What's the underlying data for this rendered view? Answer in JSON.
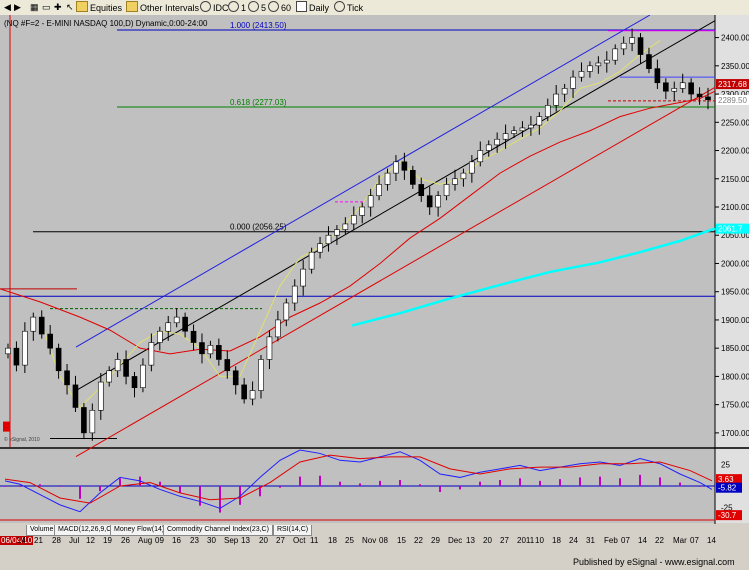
{
  "toolbar": {
    "items": [
      "Equities",
      "Other Intervals",
      "IDC",
      "1",
      "5",
      "60",
      "Daily",
      "Tick"
    ]
  },
  "chart_title": "(NQ #F=2 - E-MINI NASDAQ 100,D) Dynamic,0:00-24:00",
  "watermark": "© eSignal, 2010",
  "footer": "Published by eSignal - www.esignal.com",
  "tabs": [
    "Volume",
    "MACD(12,26,9,C)",
    "Money Flow(14)",
    "Commodity Channel Index(23,C)",
    "RSI(14,C)"
  ],
  "colors": {
    "chart_bg": "#c0c0c0",
    "up": "#ffffff",
    "down": "#000000",
    "fib_top": "#0000c0",
    "fib_mid": "#008000",
    "fib_low": "#000000",
    "cyan_ma": "#00ffff",
    "red_ma": "#e00000",
    "price_box": "#c00000"
  },
  "chart_data": {
    "type": "candlestick",
    "title": "(NQ #F=2 - E-MINI NASDAQ 100,D) Dynamic,0:00-24:00",
    "xlabel": "",
    "ylabel": "",
    "ylim": [
      1675,
      2440
    ],
    "y_ticks": [
      1700,
      1750,
      1800,
      1850,
      1900,
      1950,
      2000,
      2050,
      2100,
      2150,
      2200,
      2250,
      2300,
      2350,
      2400
    ],
    "date_labels": [
      "06/04/10",
      "14",
      "21",
      "28",
      "Jul",
      "12",
      "19",
      "26",
      "Aug",
      "09",
      "16",
      "23",
      "30",
      "Sep",
      "13",
      "20",
      "27",
      "Oct",
      "11",
      "18",
      "25",
      "Nov",
      "08",
      "15",
      "22",
      "29",
      "Dec",
      "13",
      "20",
      "27",
      "2011",
      "10",
      "18",
      "24",
      "31",
      "Feb",
      "07",
      "14",
      "22",
      "Mar",
      "07",
      "14"
    ],
    "fib_levels": [
      {
        "label": "1.000 (2413.50)",
        "value": 2413.5
      },
      {
        "label": "0.618 (2277.03)",
        "value": 2277.03
      },
      {
        "label": "0.000 (2056.25)",
        "value": 2056.25
      }
    ],
    "price_labels": [
      {
        "text": "2317.68",
        "value": 2317.68,
        "bg": "#c00000",
        "fg": "#ffffff"
      },
      {
        "text": "2289.50",
        "value": 2289.5,
        "bg": "#ffffff",
        "fg": "#808080"
      },
      {
        "text": "2061.7",
        "value": 2061.7,
        "bg": "#00ffff",
        "fg": "#ffffff"
      }
    ],
    "hlines": [
      {
        "value": 1942,
        "color": "#0000c0",
        "dash": false
      },
      {
        "value": 1955,
        "color": "#c00000",
        "dash": false,
        "xfrom": 0,
        "xto": 77
      },
      {
        "value": 1920,
        "color": "#006000",
        "dash": true,
        "xfrom": 50,
        "xto": 262
      },
      {
        "value": 1690,
        "color": "#000000",
        "dash": false,
        "xfrom": 50,
        "xto": 117
      },
      {
        "value": 2109,
        "color": "#ff00ff",
        "dash": true,
        "xfrom": 335,
        "xto": 365
      },
      {
        "value": 2288,
        "color": "#c00000",
        "dash": true,
        "xfrom": 608,
        "xto": 715
      },
      {
        "value": 2330,
        "color": "#4040ff",
        "dash": false,
        "xfrom": 620,
        "xto": 715
      },
      {
        "value": 2412,
        "color": "#ff00ff",
        "dash": false,
        "xfrom": 608,
        "xto": 715
      }
    ],
    "channel": {
      "upper": [
        [
          76,
          1852
        ],
        [
          650,
          2440
        ]
      ],
      "middle": [
        [
          76,
          1775
        ],
        [
          715,
          2430
        ]
      ],
      "lower": [
        [
          76,
          1658
        ],
        [
          715,
          2312
        ]
      ]
    },
    "cyan_ma": [
      [
        352,
        1890
      ],
      [
        400,
        1912
      ],
      [
        450,
        1938
      ],
      [
        500,
        1962
      ],
      [
        550,
        1985
      ],
      [
        600,
        2002
      ],
      [
        640,
        2020
      ],
      [
        680,
        2040
      ],
      [
        715,
        2062
      ]
    ],
    "red_ma": [
      [
        0,
        1955
      ],
      [
        40,
        1932
      ],
      [
        80,
        1905
      ],
      [
        110,
        1882
      ],
      [
        140,
        1850
      ],
      [
        170,
        1840
      ],
      [
        200,
        1848
      ],
      [
        230,
        1845
      ],
      [
        260,
        1870
      ],
      [
        290,
        1905
      ],
      [
        320,
        1930
      ],
      [
        350,
        1960
      ],
      [
        380,
        2000
      ],
      [
        410,
        2045
      ],
      [
        440,
        2080
      ],
      [
        470,
        2120
      ],
      [
        500,
        2160
      ],
      [
        530,
        2190
      ],
      [
        560,
        2215
      ],
      [
        590,
        2235
      ],
      [
        620,
        2260
      ],
      [
        650,
        2275
      ],
      [
        680,
        2285
      ],
      [
        700,
        2292
      ],
      [
        715,
        2305
      ]
    ],
    "yellow_ma": [
      [
        40,
        1900
      ],
      [
        60,
        1800
      ],
      [
        80,
        1745
      ],
      [
        100,
        1780
      ],
      [
        120,
        1820
      ],
      [
        140,
        1860
      ],
      [
        160,
        1880
      ],
      [
        180,
        1875
      ],
      [
        200,
        1850
      ],
      [
        220,
        1800
      ],
      [
        240,
        1800
      ],
      [
        260,
        1880
      ],
      [
        280,
        1960
      ],
      [
        300,
        2010
      ],
      [
        320,
        2030
      ],
      [
        340,
        2060
      ],
      [
        360,
        2100
      ],
      [
        380,
        2150
      ],
      [
        400,
        2180
      ],
      [
        420,
        2150
      ],
      [
        440,
        2140
      ],
      [
        460,
        2150
      ],
      [
        480,
        2180
      ],
      [
        500,
        2200
      ],
      [
        520,
        2220
      ],
      [
        540,
        2240
      ],
      [
        560,
        2270
      ],
      [
        580,
        2310
      ],
      [
        600,
        2320
      ],
      [
        620,
        2340
      ],
      [
        640,
        2370
      ],
      [
        660,
        2395
      ]
    ],
    "closes": [
      1850,
      1820,
      1880,
      1905,
      1875,
      1850,
      1810,
      1785,
      1745,
      1700,
      1740,
      1790,
      1810,
      1830,
      1800,
      1780,
      1820,
      1860,
      1880,
      1895,
      1905,
      1880,
      1860,
      1840,
      1855,
      1830,
      1810,
      1785,
      1760,
      1775,
      1830,
      1870,
      1900,
      1930,
      1960,
      1990,
      2020,
      2035,
      2050,
      2060,
      2070,
      2085,
      2100,
      2120,
      2140,
      2160,
      2180,
      2165,
      2140,
      2120,
      2100,
      2120,
      2140,
      2150,
      2160,
      2180,
      2200,
      2210,
      2220,
      2230,
      2235,
      2240,
      2245,
      2260,
      2280,
      2300,
      2310,
      2330,
      2340,
      2350,
      2355,
      2360,
      2380,
      2390,
      2400,
      2370,
      2345,
      2320,
      2305,
      2310,
      2320,
      2300,
      2295,
      2290
    ],
    "macd": [
      [
        5,
        6
      ],
      [
        20,
        2
      ],
      [
        40,
        -10
      ],
      [
        60,
        -22
      ],
      [
        80,
        -30
      ],
      [
        100,
        -8
      ],
      [
        120,
        10
      ],
      [
        140,
        6
      ],
      [
        160,
        -4
      ],
      [
        180,
        -12
      ],
      [
        200,
        -18
      ],
      [
        220,
        -26
      ],
      [
        240,
        -12
      ],
      [
        260,
        10
      ],
      [
        280,
        30
      ],
      [
        300,
        42
      ],
      [
        320,
        38
      ],
      [
        340,
        30
      ],
      [
        360,
        28
      ],
      [
        380,
        34
      ],
      [
        400,
        40
      ],
      [
        420,
        30
      ],
      [
        440,
        14
      ],
      [
        460,
        10
      ],
      [
        480,
        16
      ],
      [
        500,
        20
      ],
      [
        520,
        24
      ],
      [
        540,
        18
      ],
      [
        560,
        22
      ],
      [
        580,
        26
      ],
      [
        600,
        28
      ],
      [
        620,
        24
      ],
      [
        640,
        32
      ],
      [
        660,
        26
      ],
      [
        680,
        14
      ],
      [
        700,
        4
      ],
      [
        712,
        -4
      ]
    ],
    "signal": [
      [
        5,
        8
      ],
      [
        30,
        4
      ],
      [
        60,
        -14
      ],
      [
        90,
        -20
      ],
      [
        120,
        0
      ],
      [
        150,
        4
      ],
      [
        180,
        -8
      ],
      [
        210,
        -16
      ],
      [
        240,
        -14
      ],
      [
        270,
        4
      ],
      [
        300,
        28
      ],
      [
        330,
        36
      ],
      [
        360,
        32
      ],
      [
        390,
        34
      ],
      [
        420,
        34
      ],
      [
        450,
        20
      ],
      [
        480,
        14
      ],
      [
        510,
        20
      ],
      [
        540,
        22
      ],
      [
        570,
        22
      ],
      [
        600,
        26
      ],
      [
        630,
        26
      ],
      [
        660,
        28
      ],
      [
        690,
        18
      ],
      [
        712,
        6
      ]
    ],
    "macd_labels": [
      {
        "text": "3.63",
        "value": 3.63,
        "bg": "#e00000"
      },
      {
        "text": "-5.82",
        "value": -5.82,
        "bg": "#0000c0"
      },
      {
        "text": "-30.7",
        "value": -30.7,
        "bg": "#e00000"
      }
    ],
    "macd_ticks": [
      25,
      0,
      -25
    ],
    "macd_ylim": [
      -42,
      42
    ]
  }
}
